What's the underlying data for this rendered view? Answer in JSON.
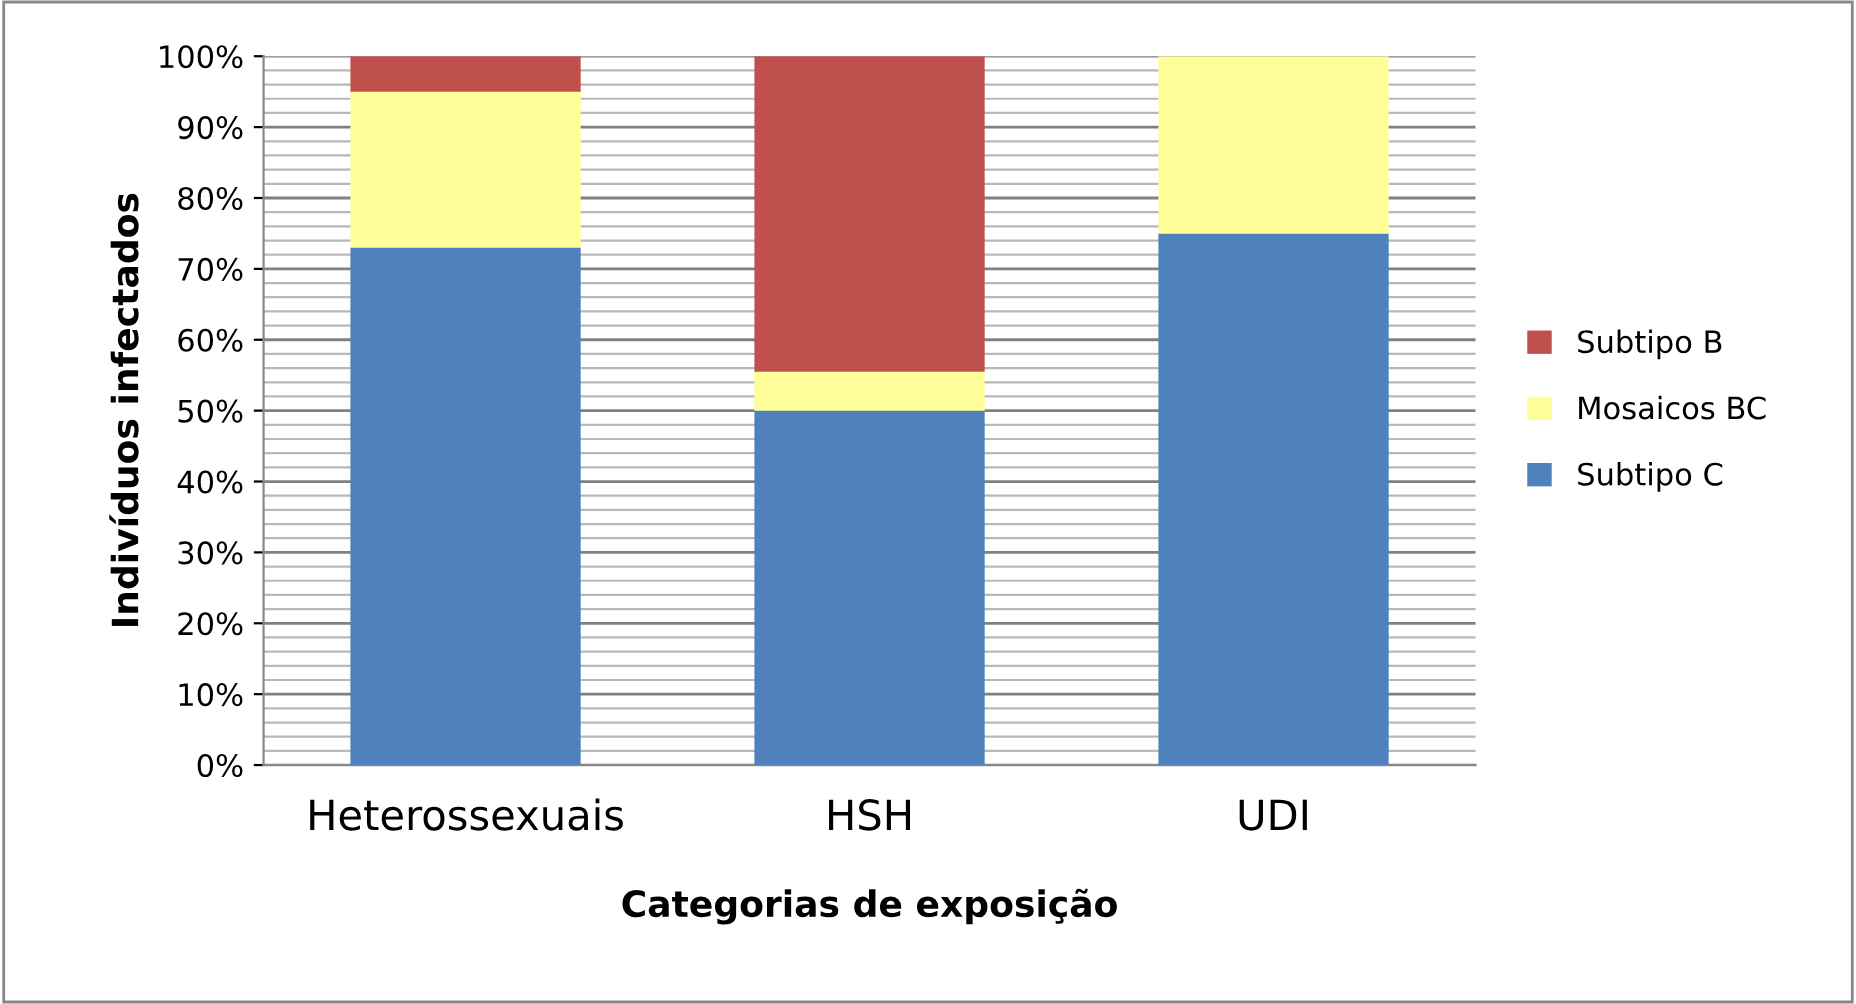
{
  "chart_data": {
    "type": "bar",
    "stacked": true,
    "xlabel": "Categorias de exposição",
    "ylabel": "Indivíduos infectados",
    "categories": [
      "Heterossexuais",
      "HSH",
      "UDI"
    ],
    "series": [
      {
        "name": "Subtipo C",
        "color": "#4f81bd",
        "values": [
          73,
          50,
          75
        ]
      },
      {
        "name": "Mosaicos BC",
        "color": "#ffff99",
        "values": [
          22,
          5.5,
          25
        ]
      },
      {
        "name": "Subtipo B",
        "color": "#c0504d",
        "values": [
          5,
          44.5,
          0
        ]
      }
    ],
    "ylim": [
      0,
      100
    ],
    "yticks": [
      {
        "value": 0,
        "label": "0%"
      },
      {
        "value": 10,
        "label": "10%"
      },
      {
        "value": 20,
        "label": "20%"
      },
      {
        "value": 30,
        "label": "30%"
      },
      {
        "value": 40,
        "label": "40%"
      },
      {
        "value": 50,
        "label": "50%"
      },
      {
        "value": 60,
        "label": "60%"
      },
      {
        "value": 70,
        "label": "70%"
      },
      {
        "value": 80,
        "label": "80%"
      },
      {
        "value": 90,
        "label": "90%"
      },
      {
        "value": 100,
        "label": "100%"
      }
    ],
    "grid": "y",
    "legend": "right"
  }
}
